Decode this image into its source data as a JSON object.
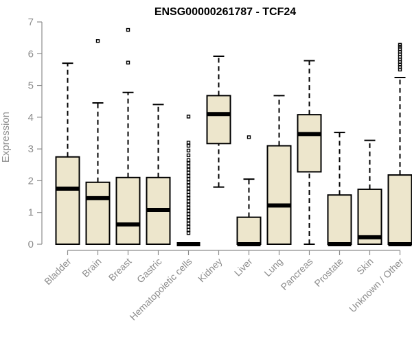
{
  "chart_data": {
    "type": "boxplot",
    "title": "ENSG00000261787 - TCF24",
    "xlabel": "",
    "ylabel": "Expression",
    "ylim": [
      0,
      7
    ],
    "yticks": [
      0,
      1,
      2,
      3,
      4,
      5,
      6,
      7
    ],
    "grid": false,
    "legend": "none",
    "box_color": "#ede6cc",
    "categories": [
      "Bladder",
      "Brain",
      "Breast",
      "Gastric",
      "Hematopoietic cells",
      "Kidney",
      "Liver",
      "Lung",
      "Pancreas",
      "Prostate",
      "Skin",
      "Unknown / Other"
    ],
    "boxes": [
      {
        "category": "Bladder",
        "whislo": 0,
        "q1": 0,
        "med": 1.75,
        "q3": 2.75,
        "whishi": 5.7,
        "fliers": []
      },
      {
        "category": "Brain",
        "whislo": 0,
        "q1": 0,
        "med": 1.45,
        "q3": 1.95,
        "whishi": 4.45,
        "fliers": [
          6.4
        ]
      },
      {
        "category": "Breast",
        "whislo": 0,
        "q1": 0,
        "med": 0.62,
        "q3": 2.1,
        "whishi": 4.78,
        "fliers": [
          5.72,
          6.75
        ]
      },
      {
        "category": "Gastric",
        "whislo": 0,
        "q1": 0,
        "med": 1.08,
        "q3": 2.1,
        "whishi": 4.4,
        "fliers": []
      },
      {
        "category": "Hematopoietic cells",
        "whislo": 0,
        "q1": 0,
        "med": 0,
        "q3": 0,
        "whishi": 0,
        "fliers": [
          0.35,
          0.45,
          0.55,
          0.65,
          0.75,
          0.85,
          0.95,
          1.05,
          1.15,
          1.25,
          1.35,
          1.45,
          1.55,
          1.65,
          1.75,
          1.85,
          1.95,
          2.05,
          2.15,
          2.25,
          2.35,
          2.45,
          2.55,
          2.65,
          2.8,
          2.95,
          3.1,
          3.2,
          4.02
        ]
      },
      {
        "category": "Kidney",
        "whislo": 1.8,
        "q1": 3.17,
        "med": 4.1,
        "q3": 4.68,
        "whishi": 5.92,
        "fliers": []
      },
      {
        "category": "Liver",
        "whislo": 0,
        "q1": 0,
        "med": 0,
        "q3": 0.85,
        "whishi": 2.05,
        "fliers": [
          3.37
        ]
      },
      {
        "category": "Lung",
        "whislo": 0,
        "q1": 0,
        "med": 1.22,
        "q3": 3.1,
        "whishi": 4.68,
        "fliers": []
      },
      {
        "category": "Pancreas",
        "whislo": 0,
        "q1": 2.28,
        "med": 3.47,
        "q3": 4.08,
        "whishi": 5.78,
        "fliers": []
      },
      {
        "category": "Prostate",
        "whislo": 0,
        "q1": 0,
        "med": 0,
        "q3": 1.55,
        "whishi": 3.52,
        "fliers": []
      },
      {
        "category": "Skin",
        "whislo": 0,
        "q1": 0,
        "med": 0.22,
        "q3": 1.73,
        "whishi": 3.27,
        "fliers": []
      },
      {
        "category": "Unknown / Other",
        "whislo": 0,
        "q1": 0,
        "med": 0,
        "q3": 2.18,
        "whishi": 5.25,
        "fliers": [
          5.5,
          5.58,
          5.66,
          5.74,
          5.82,
          5.9,
          5.98,
          6.06,
          6.14,
          6.22,
          6.28
        ]
      }
    ]
  }
}
